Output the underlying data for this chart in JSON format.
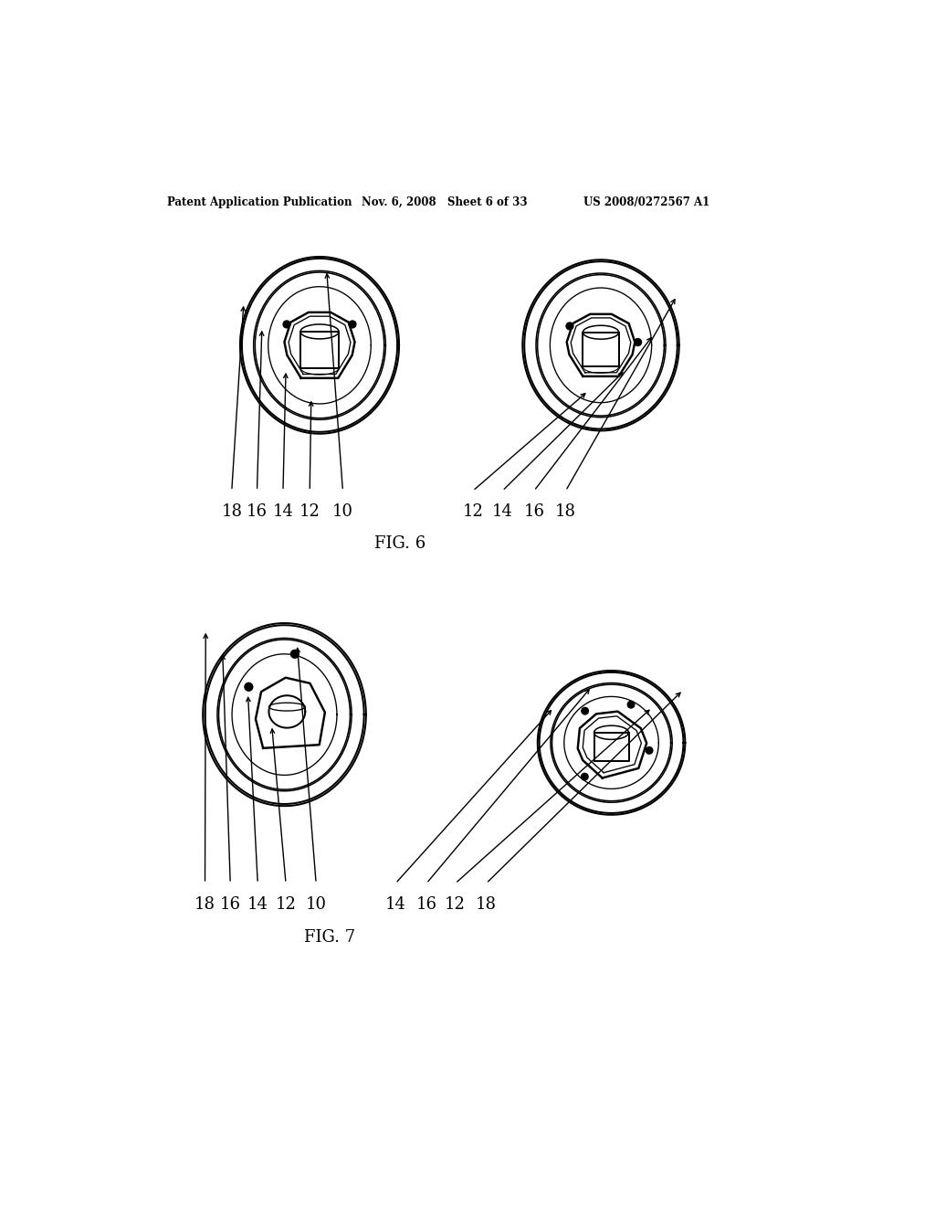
{
  "header_left": "Patent Application Publication",
  "header_mid": "Nov. 6, 2008   Sheet 6 of 33",
  "header_right": "US 2008/0272567 A1",
  "fig6_label": "FIG. 6",
  "fig7_label": "FIG. 7",
  "background_color": "#ffffff",
  "line_color": "#000000",
  "text_color": "#000000",
  "fig6_ref_labels": [
    "18",
    "16",
    "14",
    "12",
    "10",
    "12",
    "14",
    "16",
    "18"
  ],
  "fig6_ref_x": [
    160,
    196,
    233,
    271,
    318,
    503,
    545,
    590,
    635
  ],
  "fig6_ref_y": [
    510,
    510,
    510,
    510,
    510,
    510,
    510,
    510,
    510
  ],
  "fig7_ref_labels": [
    "18",
    "16",
    "14",
    "12",
    "10",
    "14",
    "16",
    "12",
    "18"
  ],
  "fig7_ref_x": [
    122,
    158,
    197,
    237,
    280,
    393,
    437,
    478,
    522
  ],
  "fig7_ref_y": [
    1068,
    1068,
    1068,
    1068,
    1068,
    1068,
    1068,
    1068,
    1068
  ]
}
